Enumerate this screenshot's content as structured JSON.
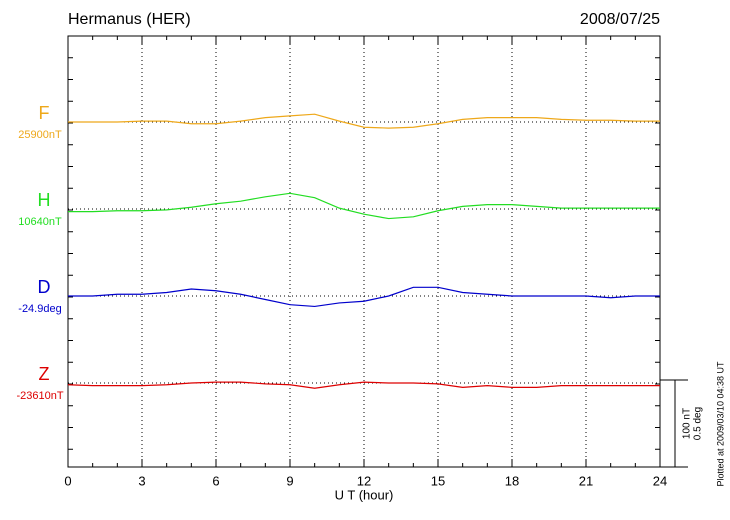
{
  "chart_data": {
    "type": "line",
    "title": "Hermanus (HER)",
    "date": "2008/07/25",
    "xlabel": "U T (hour)",
    "footnote": "Plotted at 2009/03/10 04:38 UT",
    "xlim": [
      0,
      24
    ],
    "xticks": [
      0,
      3,
      6,
      9,
      12,
      15,
      18,
      21,
      24
    ],
    "grid": true,
    "scale": {
      "value": 100,
      "label": "100 nT"
    },
    "scale2": {
      "value": 0.5,
      "label": "0.5 deg"
    },
    "x": [
      0,
      1,
      2,
      3,
      4,
      5,
      6,
      7,
      8,
      9,
      10,
      11,
      12,
      13,
      14,
      15,
      16,
      17,
      18,
      19,
      20,
      21,
      22,
      23,
      24
    ],
    "series": [
      {
        "name": "F",
        "baseline": "25900nT",
        "color": "#eea81a",
        "values": [
          0,
          0,
          0,
          1,
          1,
          -2,
          -2,
          1,
          5,
          7,
          9,
          1,
          -6,
          -7,
          -6,
          -2,
          3,
          5,
          5,
          5,
          3,
          2,
          2,
          1,
          1
        ]
      },
      {
        "name": "H",
        "baseline": "10640nT",
        "color": "#22dd22",
        "values": [
          -3,
          -3,
          -2,
          -2,
          -1,
          2,
          6,
          9,
          14,
          18,
          13,
          1,
          -6,
          -11,
          -9,
          -2,
          3,
          5,
          5,
          3,
          1,
          1,
          1,
          1,
          1
        ]
      },
      {
        "name": "D",
        "baseline": "-24.9deg",
        "color": "#0000cc",
        "axis": "y2",
        "values": [
          0,
          0,
          0.01,
          0.01,
          0.02,
          0.04,
          0.03,
          0.01,
          -0.02,
          -0.05,
          -0.06,
          -0.04,
          -0.03,
          0,
          0.05,
          0.05,
          0.02,
          0.01,
          0,
          0,
          0,
          0,
          -0.01,
          0,
          0
        ]
      },
      {
        "name": "Z",
        "baseline": "-23610nT",
        "color": "#dd0000",
        "values": [
          -2,
          -3,
          -3,
          -3,
          -2,
          0,
          1,
          1,
          -1,
          -2,
          -6,
          -2,
          1,
          0,
          0,
          -1,
          -5,
          -3,
          -5,
          -5,
          -3,
          -3,
          -3,
          -3,
          -3
        ]
      }
    ]
  }
}
